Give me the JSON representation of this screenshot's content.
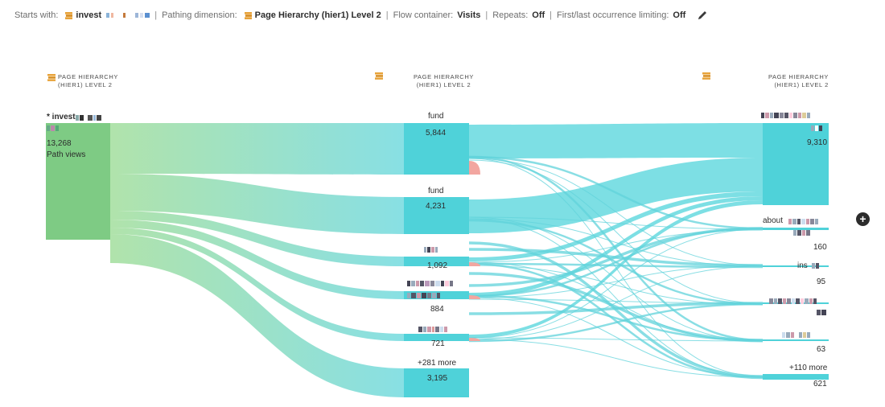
{
  "header": {
    "starts_with_label": "Starts with:",
    "starts_with_value": "invest",
    "pathing_dimension_label": "Pathing dimension:",
    "pathing_dimension_value": "Page Hierarchy (hier1) Level 2",
    "flow_container_label": "Flow container:",
    "flow_container_value": "Visits",
    "repeats_label": "Repeats:",
    "repeats_value": "Off",
    "limiting_label": "First/last occurrence limiting:",
    "limiting_value": "Off",
    "separator": "|"
  },
  "columns": [
    {
      "title_line1": "PAGE HIERARCHY",
      "title_line2": "(HIER1) LEVEL 2"
    },
    {
      "title_line1": "PAGE HIERARCHY",
      "title_line2": "(HIER1) LEVEL 2"
    },
    {
      "title_line1": "PAGE HIERARCHY",
      "title_line2": "(HIER1) LEVEL 2"
    }
  ],
  "start_node": {
    "label": "* invest",
    "value": "13,268",
    "sub": "Path views"
  },
  "middle_nodes": [
    {
      "label": "fund",
      "value": "5,844"
    },
    {
      "label": "fund",
      "value": "4,231"
    },
    {
      "label": "",
      "value": "1,092"
    },
    {
      "label": "",
      "value": "884"
    },
    {
      "label": "",
      "value": "721"
    },
    {
      "label": "+281 more",
      "value": "3,195"
    }
  ],
  "end_nodes": [
    {
      "label": "",
      "value": "9,310"
    },
    {
      "label": "about",
      "value": "160"
    },
    {
      "label": "ins",
      "value": "95"
    },
    {
      "label": "",
      "value": ""
    },
    {
      "label": "",
      "value": "63"
    },
    {
      "label": "+110 more",
      "value": "621"
    }
  ],
  "colors": {
    "start_node": "#7ecb84",
    "node": "#4fd2d9",
    "link_start": "#a6dfa3",
    "link_end": "#7fdde2",
    "exit": "#f2a6a0"
  },
  "icons": {
    "dimension": "hierarchy-dimension-icon",
    "edit": "pencil-icon",
    "add": "plus-circle-icon"
  }
}
